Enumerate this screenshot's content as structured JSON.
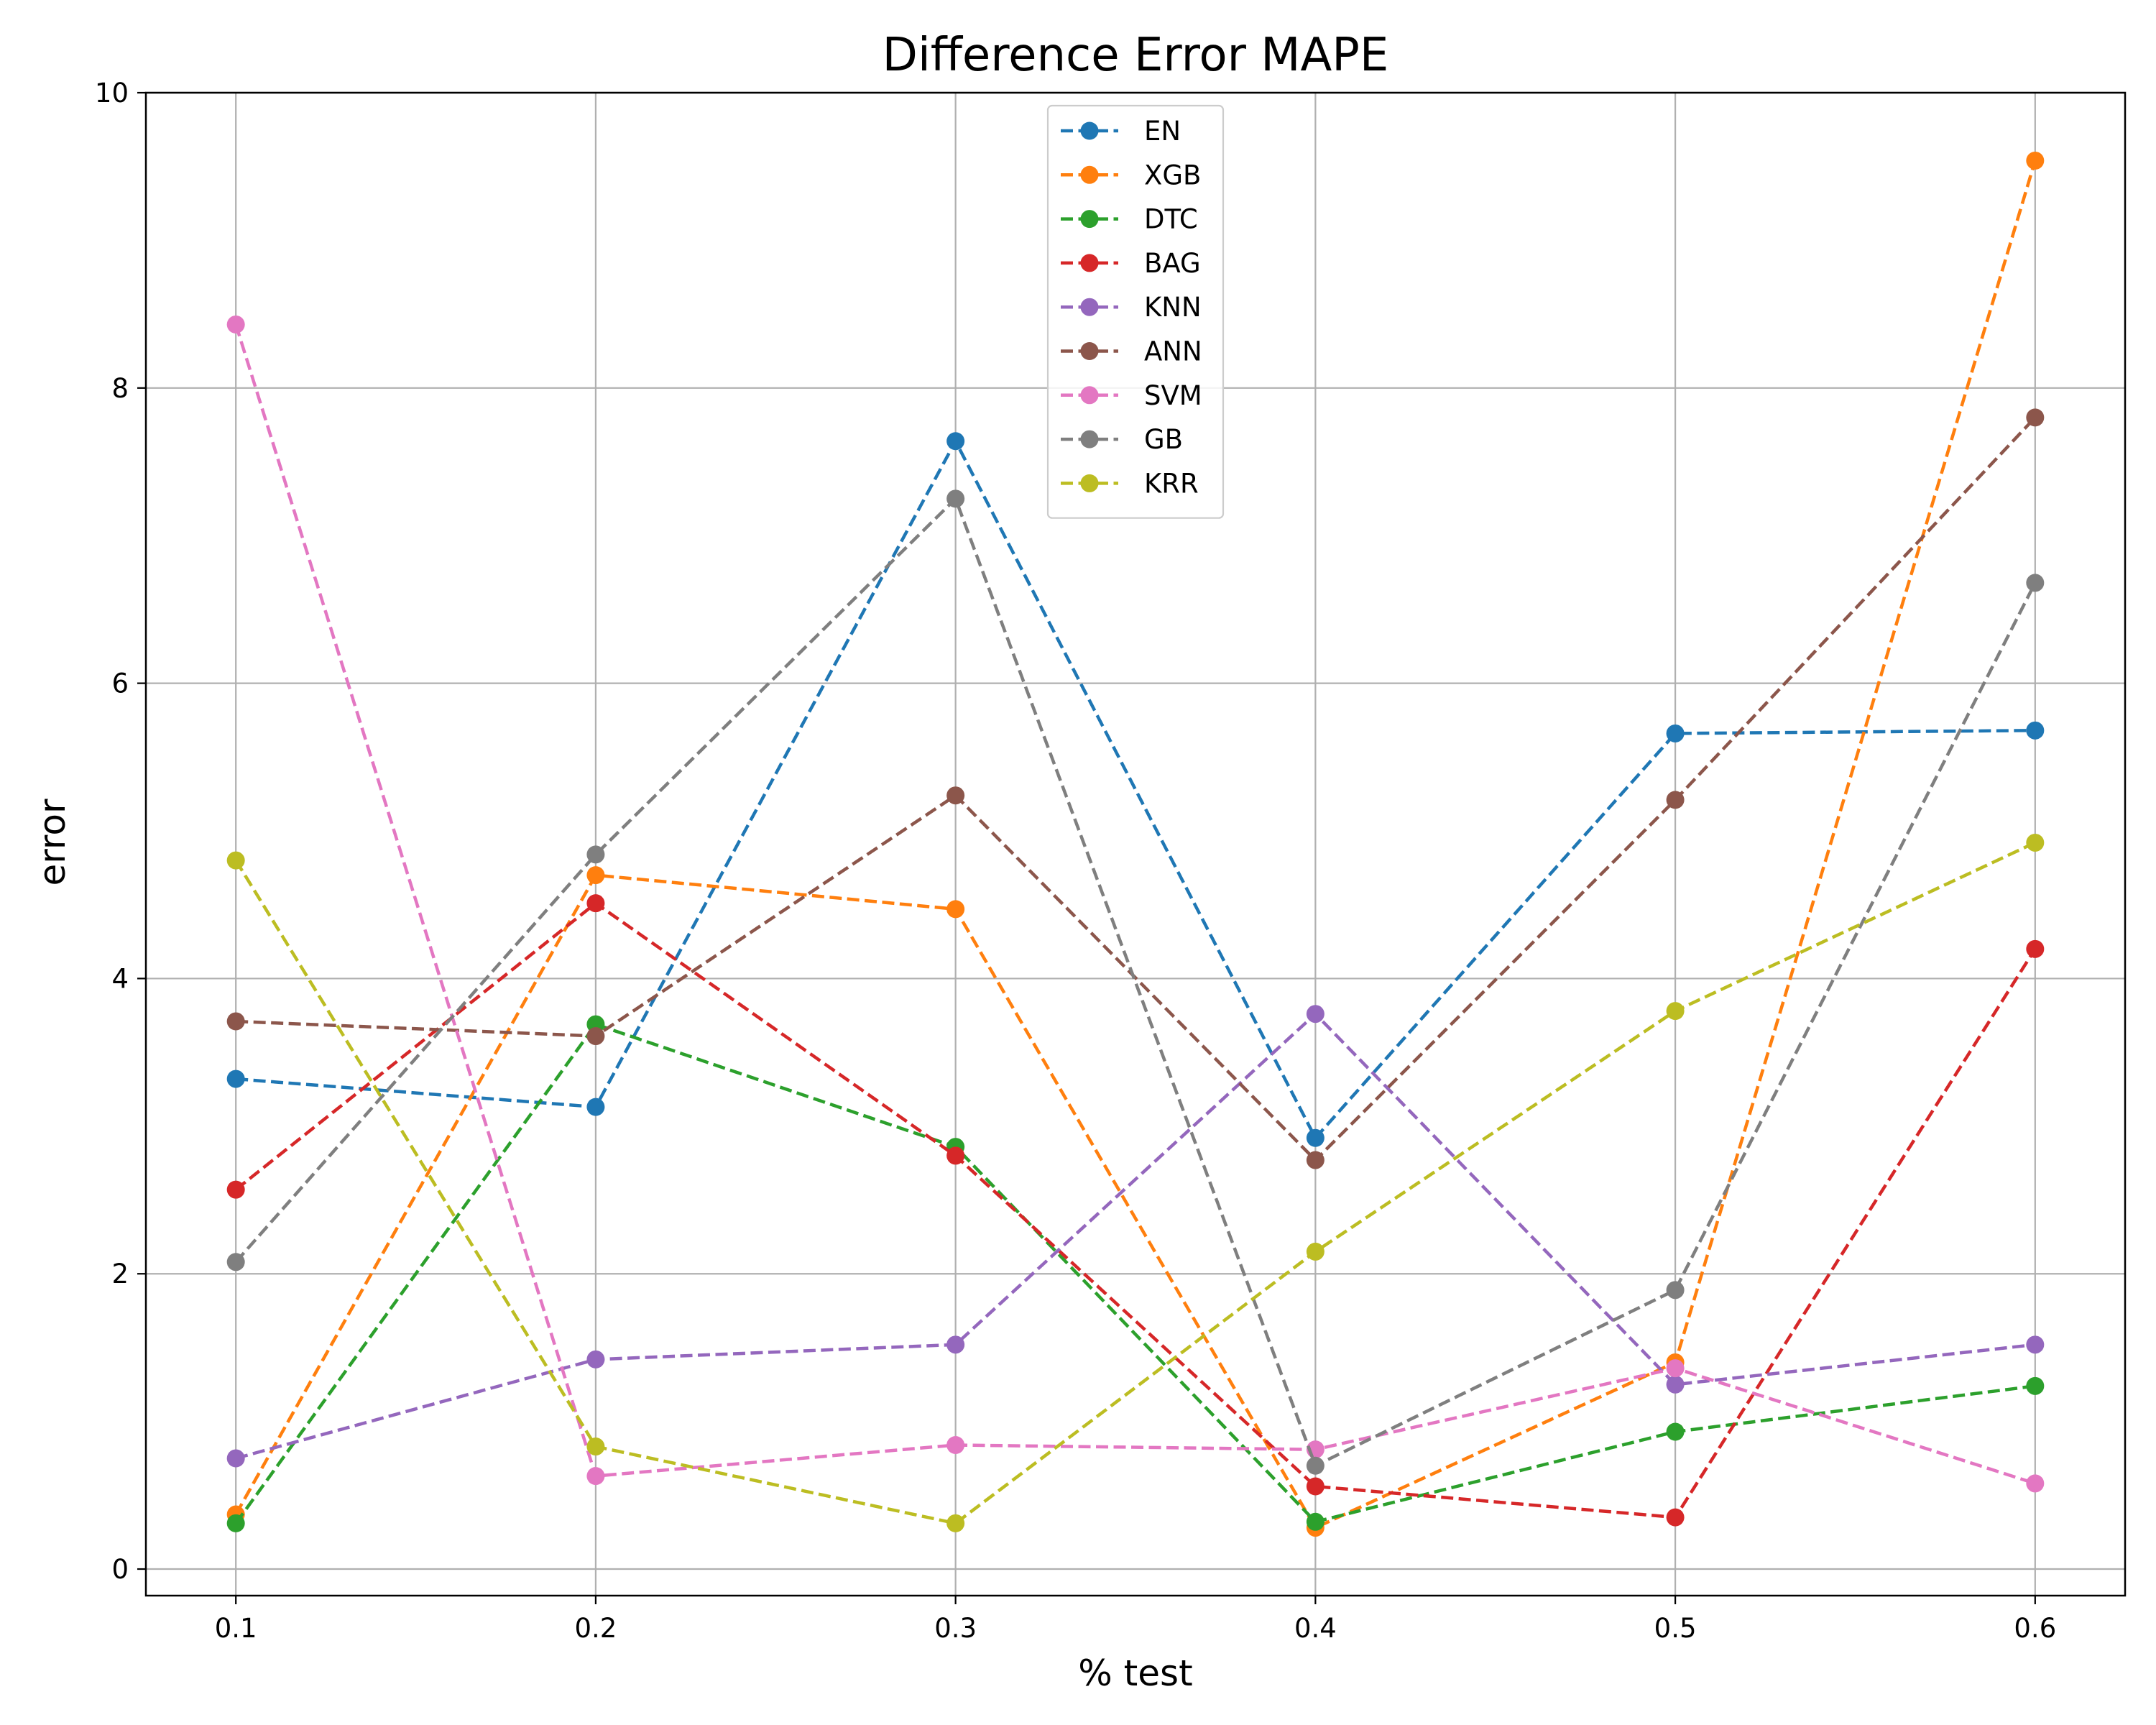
{
  "chart_data": {
    "type": "line",
    "title": "Difference Error MAPE",
    "xlabel": "% test",
    "ylabel": "error",
    "x": [
      0.1,
      0.2,
      0.3,
      0.4,
      0.5,
      0.6
    ],
    "x_tick_labels": [
      "0.1",
      "0.2",
      "0.3",
      "0.4",
      "0.5",
      "0.6"
    ],
    "y_ticks": [
      0,
      2,
      4,
      6,
      8,
      10
    ],
    "y_tick_labels": [
      "0",
      "2",
      "4",
      "6",
      "8",
      "10"
    ],
    "xlim": [
      0.075,
      0.625
    ],
    "ylim": [
      -0.18,
      10
    ],
    "grid": true,
    "legend_position": "upper-center",
    "line_style": "dashed",
    "marker": "circle",
    "series": [
      {
        "name": "EN",
        "color": "#1f77b4",
        "values": [
          3.32,
          3.13,
          7.64,
          2.92,
          5.66,
          5.68
        ]
      },
      {
        "name": "XGB",
        "color": "#ff7f0e",
        "values": [
          0.37,
          4.7,
          4.47,
          0.28,
          1.4,
          9.54
        ]
      },
      {
        "name": "DTC",
        "color": "#2ca02c",
        "values": [
          0.31,
          3.69,
          2.86,
          0.32,
          0.93,
          1.24
        ]
      },
      {
        "name": "BAG",
        "color": "#d62728",
        "values": [
          2.57,
          4.51,
          2.8,
          0.56,
          0.35,
          4.2
        ]
      },
      {
        "name": "KNN",
        "color": "#9467bd",
        "values": [
          0.75,
          1.42,
          1.52,
          3.76,
          1.25,
          1.52
        ]
      },
      {
        "name": "ANN",
        "color": "#8c564b",
        "values": [
          3.71,
          3.61,
          5.24,
          2.77,
          5.21,
          7.8
        ]
      },
      {
        "name": "SVM",
        "color": "#e377c2",
        "values": [
          8.43,
          0.63,
          0.84,
          0.81,
          1.36,
          0.58
        ]
      },
      {
        "name": "GB",
        "color": "#7f7f7f",
        "values": [
          2.08,
          4.84,
          7.25,
          0.7,
          1.89,
          6.68
        ]
      },
      {
        "name": "KRR",
        "color": "#bcbd22",
        "values": [
          4.8,
          0.83,
          0.31,
          2.15,
          3.78,
          4.92
        ]
      }
    ]
  }
}
